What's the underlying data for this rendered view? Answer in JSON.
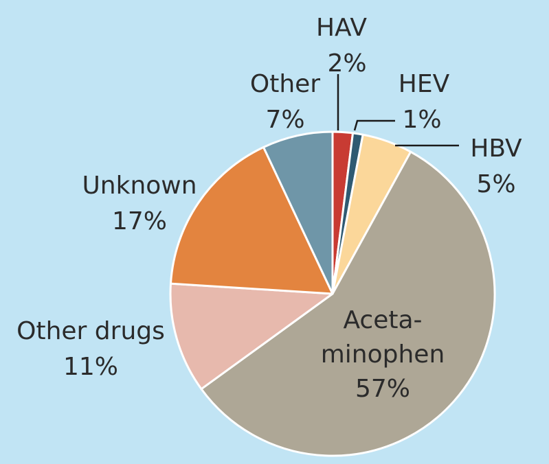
{
  "chart_data": {
    "type": "pie",
    "title": "",
    "start_angle_deg": 0,
    "direction": "clockwise",
    "slices": [
      {
        "label": "HAV",
        "value": 2,
        "value_label": "2%",
        "color": "#c83b33"
      },
      {
        "label": "HEV",
        "value": 1,
        "value_label": "1%",
        "color": "#2f5a72"
      },
      {
        "label": "HBV",
        "value": 5,
        "value_label": "5%",
        "color": "#fbd79a"
      },
      {
        "label": "Aceta-\nminophen",
        "value": 57,
        "value_label": "57%",
        "color": "#aea796"
      },
      {
        "label": "Other drugs",
        "value": 11,
        "value_label": "11%",
        "color": "#e7b9ad"
      },
      {
        "label": "Unknown",
        "value": 17,
        "value_label": "17%",
        "color": "#e3843f"
      },
      {
        "label": "Other",
        "value": 7,
        "value_label": "7%",
        "color": "#6f96a8"
      }
    ],
    "background": "#c1e4f4",
    "slice_border": "#ffffff"
  }
}
